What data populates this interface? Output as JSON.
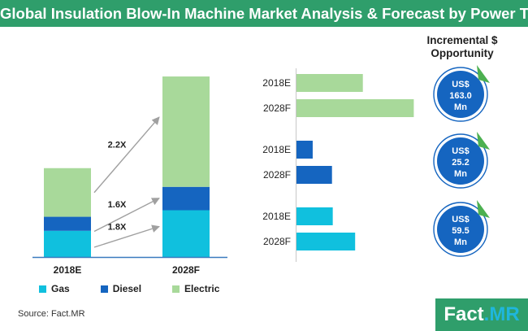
{
  "header": {
    "title": "Global Insulation Blow-In Machine Market Analysis & Forecast by Power Type"
  },
  "incremental": {
    "title_line1": "Incremental $",
    "title_line2": "Opportunity",
    "bubbles": [
      {
        "line1": "US$",
        "line2": "163.0",
        "line3": "Mn"
      },
      {
        "line1": "US$",
        "line2": "25.2",
        "line3": "Mn"
      },
      {
        "line1": "US$",
        "line2": "59.5",
        "line3": "Mn"
      }
    ]
  },
  "legend": {
    "items": [
      {
        "label": "Gas",
        "color": "#10c0de"
      },
      {
        "label": "Diesel",
        "color": "#1565c0"
      },
      {
        "label": "Electric",
        "color": "#a8d99a"
      }
    ]
  },
  "source": "Source: Fact.MR",
  "logo": {
    "part1": "Fact",
    "part2": ".MR"
  },
  "chart_data": [
    {
      "type": "bar",
      "stacked": true,
      "categories": [
        "2018E",
        "2028F"
      ],
      "series": [
        {
          "name": "Gas",
          "color": "#10c0de",
          "values": [
            28,
            50
          ]
        },
        {
          "name": "Diesel",
          "color": "#1565c0",
          "values": [
            15,
            25
          ]
        },
        {
          "name": "Electric",
          "color": "#a8d99a",
          "values": [
            52,
            118
          ]
        }
      ],
      "ylim": [
        0,
        200
      ],
      "growth_labels": [
        "2.2X",
        "1.6X",
        "1.8X"
      ]
    },
    {
      "type": "bar",
      "orientation": "horizontal",
      "groups": [
        {
          "series": "Electric",
          "color": "#a8d99a",
          "categories": [
            "2018E",
            "2028F"
          ],
          "values": [
            86,
            152
          ]
        },
        {
          "series": "Diesel",
          "color": "#1565c0",
          "categories": [
            "2018E",
            "2028F"
          ],
          "values": [
            21,
            46
          ]
        },
        {
          "series": "Gas",
          "color": "#10c0de",
          "categories": [
            "2018E",
            "2028F"
          ],
          "values": [
            47,
            76
          ]
        }
      ],
      "xlim": [
        0,
        160
      ]
    }
  ]
}
